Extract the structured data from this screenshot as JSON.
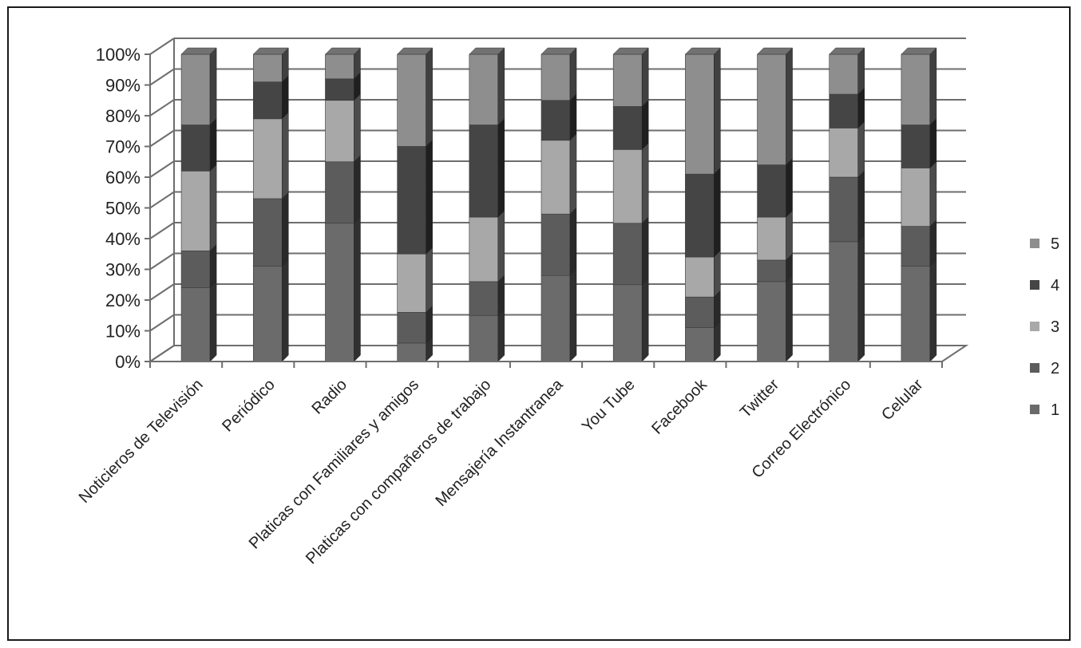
{
  "chart_data": {
    "type": "bar",
    "stacked": true,
    "percent_stacked": true,
    "three_d": true,
    "title": "",
    "xlabel": "",
    "ylabel": "",
    "ylim": [
      0,
      100
    ],
    "y_ticks": [
      "0%",
      "10%",
      "20%",
      "30%",
      "40%",
      "50%",
      "60%",
      "70%",
      "80%",
      "90%",
      "100%"
    ],
    "grid": true,
    "legend_position": "right",
    "categories": [
      "Noticieros de Televisión",
      "Periódico",
      "Radio",
      "Platicas con Familiares y amigos",
      "Platicas con compañeros de trabajo",
      "Mensajería Instantranea",
      "You Tube",
      "Facebook",
      "Twitter",
      "Correo Electrónico",
      "Celular"
    ],
    "series": [
      {
        "name": "1",
        "color": "#6b6b6b",
        "values": [
          24,
          31,
          45,
          6,
          15,
          28,
          25,
          11,
          26,
          39,
          31
        ]
      },
      {
        "name": "2",
        "color": "#5c5c5c",
        "values": [
          12,
          22,
          20,
          10,
          11,
          20,
          20,
          10,
          7,
          21,
          13
        ]
      },
      {
        "name": "3",
        "color": "#a8a8a8",
        "values": [
          26,
          26,
          20,
          19,
          21,
          24,
          24,
          13,
          14,
          16,
          19
        ]
      },
      {
        "name": "4",
        "color": "#454545",
        "values": [
          15,
          12,
          7,
          35,
          30,
          13,
          14,
          27,
          17,
          11,
          14
        ]
      },
      {
        "name": "5",
        "color": "#8e8e8e",
        "values": [
          23,
          9,
          8,
          30,
          23,
          15,
          17,
          39,
          36,
          13,
          23
        ]
      }
    ],
    "legend": [
      "5",
      "4",
      "3",
      "2",
      "1"
    ]
  }
}
